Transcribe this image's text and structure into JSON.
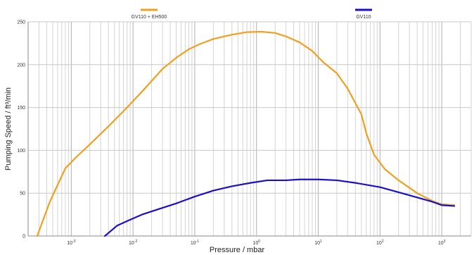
{
  "chart_data": {
    "type": "line",
    "xlabel": "Pressure / mbar",
    "ylabel": "Pumping Speed / ft³/min",
    "x_scale": "log",
    "xlim": [
      0.0002,
      3000
    ],
    "ylim": [
      0,
      250
    ],
    "y_ticks": [
      0,
      50,
      100,
      150,
      200,
      250
    ],
    "x_ticks": [
      {
        "value": 0.001,
        "base": "10",
        "exp": "-3"
      },
      {
        "value": 0.01,
        "base": "10",
        "exp": "-2"
      },
      {
        "value": 0.1,
        "base": "10",
        "exp": "-1"
      },
      {
        "value": 1,
        "base": "10",
        "exp": "0"
      },
      {
        "value": 10,
        "base": "10",
        "exp": "1"
      },
      {
        "value": 100,
        "base": "10",
        "exp": "2"
      },
      {
        "value": 1000,
        "base": "10",
        "exp": "3"
      }
    ],
    "grid": true,
    "legend_position": "top",
    "series": [
      {
        "name": "GV110 + EH500",
        "color": "#f0a020",
        "points": [
          [
            0.00028,
            0
          ],
          [
            0.00045,
            40
          ],
          [
            0.0008,
            79
          ],
          [
            0.0012,
            92
          ],
          [
            0.002,
            107
          ],
          [
            0.004,
            128
          ],
          [
            0.008,
            150
          ],
          [
            0.015,
            171
          ],
          [
            0.03,
            195
          ],
          [
            0.05,
            208
          ],
          [
            0.08,
            218
          ],
          [
            0.12,
            224
          ],
          [
            0.2,
            230
          ],
          [
            0.4,
            235
          ],
          [
            0.7,
            238
          ],
          [
            1.2,
            238.5
          ],
          [
            2,
            237
          ],
          [
            3,
            233
          ],
          [
            5,
            226
          ],
          [
            8,
            216
          ],
          [
            12,
            203
          ],
          [
            20,
            190
          ],
          [
            30,
            172
          ],
          [
            50,
            142
          ],
          [
            60,
            120
          ],
          [
            80,
            95
          ],
          [
            120,
            78
          ],
          [
            200,
            65
          ],
          [
            400,
            50
          ],
          [
            700,
            41
          ],
          [
            1000,
            37
          ],
          [
            1600,
            36
          ]
        ]
      },
      {
        "name": "GV110",
        "color": "#1a10c8",
        "points": [
          [
            0.0035,
            0
          ],
          [
            0.0055,
            12
          ],
          [
            0.009,
            19
          ],
          [
            0.014,
            25
          ],
          [
            0.025,
            31
          ],
          [
            0.05,
            38
          ],
          [
            0.1,
            46
          ],
          [
            0.2,
            53
          ],
          [
            0.4,
            58
          ],
          [
            0.8,
            62
          ],
          [
            1.5,
            65
          ],
          [
            3,
            65
          ],
          [
            5,
            66
          ],
          [
            10,
            66
          ],
          [
            20,
            65
          ],
          [
            40,
            62
          ],
          [
            100,
            57
          ],
          [
            200,
            51
          ],
          [
            400,
            45
          ],
          [
            700,
            40
          ],
          [
            1000,
            36
          ],
          [
            1600,
            35
          ]
        ]
      }
    ]
  }
}
